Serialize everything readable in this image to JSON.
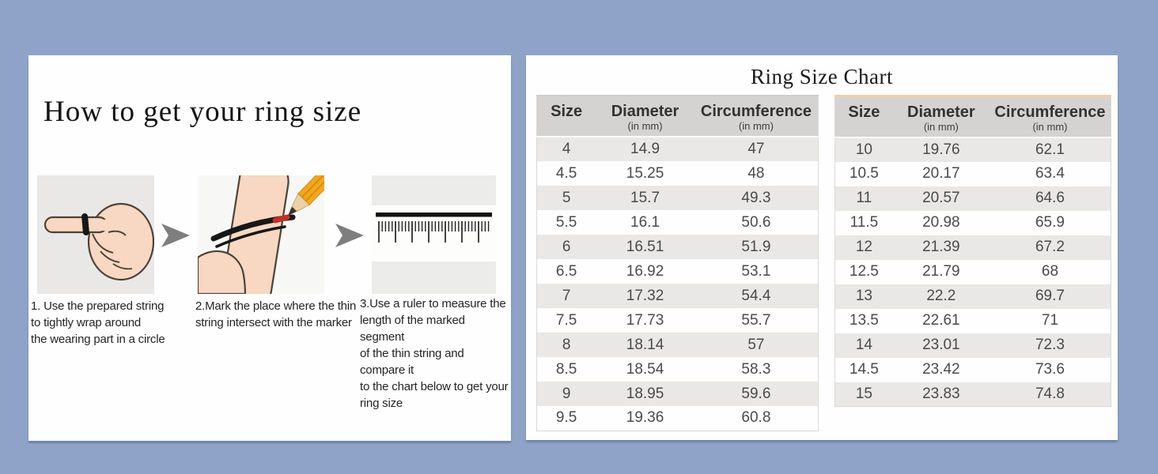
{
  "left_panel": {
    "title": "How to get your ring size",
    "steps": [
      {
        "illustration": "hand-with-string-wrapped-around-finger",
        "text": "1. Use the prepared string\nto tightly wrap around\nthe wearing part in a circle"
      },
      {
        "illustration": "pencil-marking-string-on-finger",
        "text": "2.Mark the place where the thin\nstring intersect with the marker"
      },
      {
        "illustration": "ruler-measuring-marked-string",
        "text": "3.Use a ruler to measure the\nlength of the marked segment\nof the thin string and compare it\nto the chart below to get your\nring size"
      }
    ]
  },
  "right_panel": {
    "title": "Ring Size Chart",
    "column_headers": [
      {
        "label": "Size",
        "sub": ""
      },
      {
        "label": "Diameter",
        "sub": "(in mm)"
      },
      {
        "label": "Circumference",
        "sub": "(in mm)"
      }
    ]
  },
  "colors": {
    "background": "#8fa3c8",
    "card": "#ffffff",
    "table_header_bg": "#d5d3d1",
    "row_stripe_bg": "#e9e8e6",
    "right_table_accent_line": "#eed0ab",
    "arrow_gray": "#7e7e7e",
    "string_black": "#171717",
    "pencil_orange": "#f3a71f",
    "mark_red": "#c03126"
  },
  "chart_data": [
    {
      "type": "table",
      "title": "Ring Size Chart",
      "columns": [
        "Size",
        "Diameter (in mm)",
        "Circumference (in mm)"
      ],
      "rows": [
        [
          "4",
          "14.9",
          "47"
        ],
        [
          "4.5",
          "15.25",
          "48"
        ],
        [
          "5",
          "15.7",
          "49.3"
        ],
        [
          "5.5",
          "16.1",
          "50.6"
        ],
        [
          "6",
          "16.51",
          "51.9"
        ],
        [
          "6.5",
          "16.92",
          "53.1"
        ],
        [
          "7",
          "17.32",
          "54.4"
        ],
        [
          "7.5",
          "17.73",
          "55.7"
        ],
        [
          "8",
          "18.14",
          "57"
        ],
        [
          "8.5",
          "18.54",
          "58.3"
        ],
        [
          "9",
          "18.95",
          "59.6"
        ],
        [
          "9.5",
          "19.36",
          "60.8"
        ]
      ]
    },
    {
      "type": "table",
      "title": "Ring Size Chart",
      "columns": [
        "Size",
        "Diameter (in mm)",
        "Circumference (in mm)"
      ],
      "rows": [
        [
          "10",
          "19.76",
          "62.1"
        ],
        [
          "10.5",
          "20.17",
          "63.4"
        ],
        [
          "11",
          "20.57",
          "64.6"
        ],
        [
          "11.5",
          "20.98",
          "65.9"
        ],
        [
          "12",
          "21.39",
          "67.2"
        ],
        [
          "12.5",
          "21.79",
          "68"
        ],
        [
          "13",
          "22.2",
          "69.7"
        ],
        [
          "13.5",
          "22.61",
          "71"
        ],
        [
          "14",
          "23.01",
          "72.3"
        ],
        [
          "14.5",
          "23.42",
          "73.6"
        ],
        [
          "15",
          "23.83",
          "74.8"
        ]
      ]
    }
  ]
}
